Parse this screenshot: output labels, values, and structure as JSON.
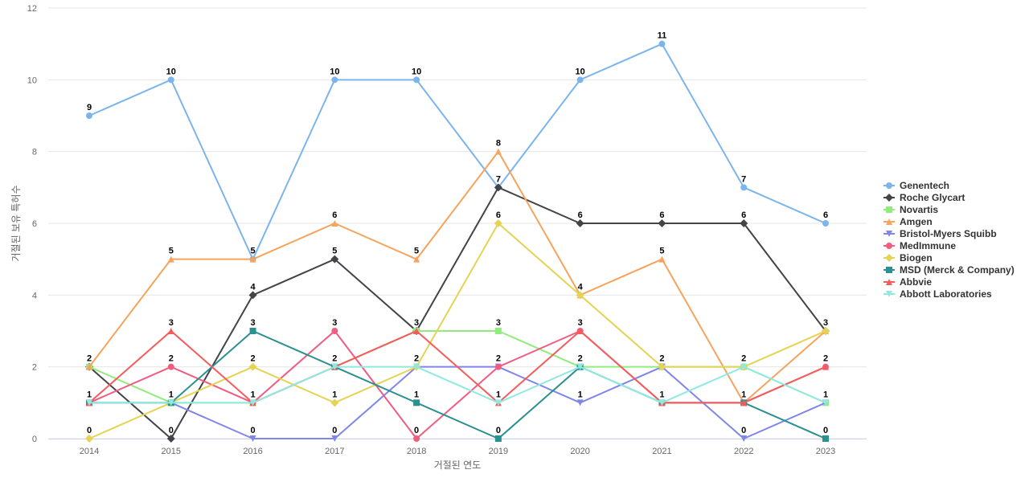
{
  "chart_data": {
    "type": "line",
    "title": "",
    "xlabel": "거절된 연도",
    "ylabel": "거절된 보유 특허수",
    "categories": [
      "2014",
      "2015",
      "2016",
      "2017",
      "2018",
      "2019",
      "2020",
      "2021",
      "2022",
      "2023"
    ],
    "ylim": [
      0,
      12
    ],
    "yticks": [
      0,
      2,
      4,
      6,
      8,
      10,
      12
    ],
    "grid": true,
    "legend_position": "right",
    "series": [
      {
        "name": "Genentech",
        "color": "#7cb5ec",
        "marker": "circle",
        "values": [
          9,
          10,
          5,
          10,
          10,
          7,
          10,
          11,
          7,
          6
        ]
      },
      {
        "name": "Roche Glycart",
        "color": "#434348",
        "marker": "diamond",
        "values": [
          2,
          0,
          4,
          5,
          3,
          7,
          6,
          6,
          6,
          3
        ]
      },
      {
        "name": "Novartis",
        "color": "#90ed7d",
        "marker": "square",
        "values": [
          2,
          1,
          1,
          2,
          3,
          3,
          2,
          2,
          2,
          1
        ]
      },
      {
        "name": "Amgen",
        "color": "#f7a35c",
        "marker": "triangle",
        "values": [
          2,
          5,
          5,
          6,
          5,
          8,
          4,
          5,
          1,
          3
        ]
      },
      {
        "name": "Bristol-Myers Squibb",
        "color": "#8085e9",
        "marker": "triangle-down",
        "values": [
          1,
          1,
          0,
          0,
          2,
          2,
          1,
          2,
          0,
          1
        ]
      },
      {
        "name": "MedImmune",
        "color": "#f15c80",
        "marker": "circle",
        "values": [
          1,
          2,
          1,
          3,
          0,
          2,
          3,
          1,
          1,
          2
        ]
      },
      {
        "name": "Biogen",
        "color": "#e4d354",
        "marker": "diamond",
        "values": [
          0,
          1,
          2,
          1,
          2,
          6,
          4,
          2,
          2,
          3
        ]
      },
      {
        "name": "MSD (Merck & Company)",
        "color": "#2b908f",
        "marker": "square",
        "values": [
          1,
          1,
          3,
          2,
          1,
          0,
          2,
          1,
          1,
          0
        ]
      },
      {
        "name": "Abbvie",
        "color": "#f45b5b",
        "marker": "triangle",
        "values": [
          1,
          3,
          1,
          2,
          3,
          1,
          3,
          1,
          1,
          2
        ]
      },
      {
        "name": "Abbott Laboratories",
        "color": "#91e8e1",
        "marker": "triangle-down",
        "values": [
          1,
          1,
          1,
          2,
          2,
          1,
          2,
          1,
          2,
          1
        ]
      }
    ]
  }
}
